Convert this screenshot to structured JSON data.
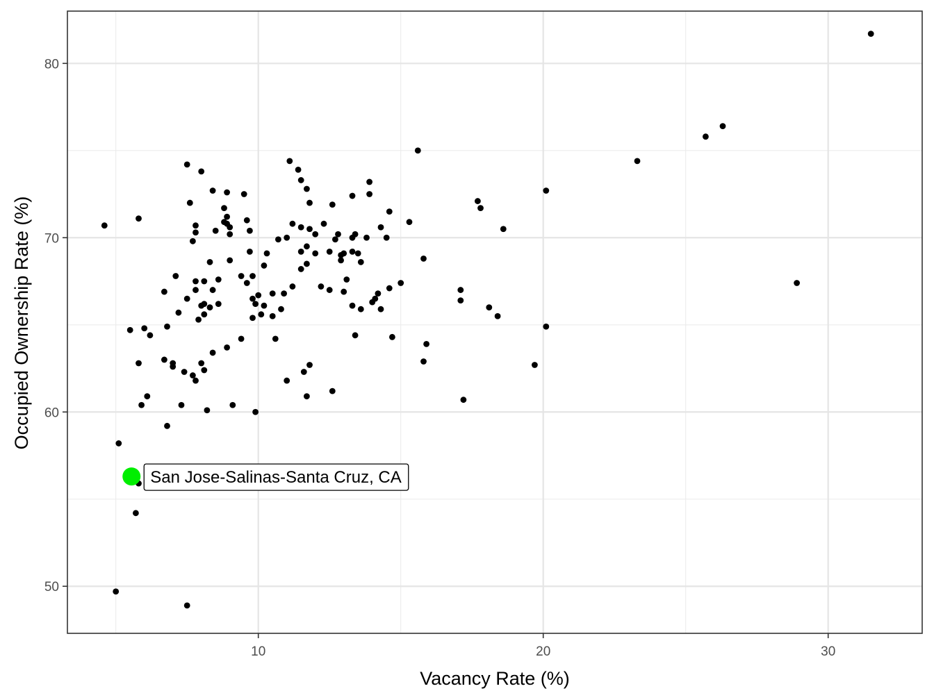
{
  "chart_data": {
    "type": "scatter",
    "title": "",
    "xlabel": "Vacancy Rate (%)",
    "ylabel": "Occupied Ownership Rate (%)",
    "xlim": [
      3.3,
      33.3
    ],
    "ylim": [
      47.3,
      83.0
    ],
    "x_ticks": [
      10,
      20,
      30
    ],
    "y_ticks": [
      50,
      60,
      70,
      80
    ],
    "x_tick_labels": [
      "10",
      "20",
      "30"
    ],
    "y_tick_labels": [
      "50",
      "60",
      "70",
      "80"
    ],
    "grid": true,
    "point_color": "#000000",
    "highlight_color": "#00ee00",
    "highlight": {
      "label": "San Jose-Salinas-Santa Cruz, CA",
      "x": 5.55,
      "y": 56.3
    },
    "points": [
      [
        31.5,
        81.7
      ],
      [
        26.3,
        76.4
      ],
      [
        25.7,
        75.8
      ],
      [
        23.3,
        74.4
      ],
      [
        28.9,
        67.4
      ],
      [
        20.1,
        72.7
      ],
      [
        20.1,
        64.9
      ],
      [
        19.7,
        62.7
      ],
      [
        18.6,
        70.5
      ],
      [
        18.4,
        65.5
      ],
      [
        18.1,
        66.0
      ],
      [
        17.7,
        72.1
      ],
      [
        17.8,
        71.7
      ],
      [
        17.1,
        67.0
      ],
      [
        17.1,
        66.4
      ],
      [
        17.2,
        60.7
      ],
      [
        15.6,
        75.0
      ],
      [
        15.8,
        68.8
      ],
      [
        15.9,
        63.9
      ],
      [
        15.8,
        62.9
      ],
      [
        15.3,
        70.9
      ],
      [
        15.0,
        67.4
      ],
      [
        14.7,
        64.3
      ],
      [
        14.6,
        71.5
      ],
      [
        14.5,
        70.0
      ],
      [
        14.6,
        67.1
      ],
      [
        14.3,
        70.6
      ],
      [
        14.3,
        65.9
      ],
      [
        14.2,
        66.8
      ],
      [
        14.1,
        66.5
      ],
      [
        14.0,
        66.3
      ],
      [
        13.9,
        73.2
      ],
      [
        13.9,
        72.5
      ],
      [
        13.8,
        70.0
      ],
      [
        13.6,
        68.6
      ],
      [
        13.6,
        65.9
      ],
      [
        13.5,
        69.1
      ],
      [
        13.4,
        70.2
      ],
      [
        13.3,
        72.4
      ],
      [
        13.3,
        70.0
      ],
      [
        13.3,
        69.2
      ],
      [
        13.3,
        66.1
      ],
      [
        13.4,
        64.4
      ],
      [
        13.0,
        69.1
      ],
      [
        13.1,
        67.6
      ],
      [
        13.0,
        66.9
      ],
      [
        12.9,
        69.0
      ],
      [
        12.9,
        68.7
      ],
      [
        12.8,
        70.2
      ],
      [
        12.7,
        69.9
      ],
      [
        12.6,
        71.9
      ],
      [
        12.5,
        69.2
      ],
      [
        12.5,
        67.0
      ],
      [
        12.6,
        61.2
      ],
      [
        12.3,
        70.8
      ],
      [
        12.2,
        67.2
      ],
      [
        12.0,
        70.2
      ],
      [
        12.0,
        69.1
      ],
      [
        11.8,
        72.0
      ],
      [
        11.7,
        72.8
      ],
      [
        11.8,
        70.5
      ],
      [
        11.7,
        69.5
      ],
      [
        11.7,
        68.5
      ],
      [
        11.8,
        62.7
      ],
      [
        11.7,
        60.9
      ],
      [
        11.5,
        73.3
      ],
      [
        11.4,
        73.9
      ],
      [
        11.5,
        70.6
      ],
      [
        11.5,
        69.2
      ],
      [
        11.5,
        68.2
      ],
      [
        11.6,
        62.3
      ],
      [
        11.1,
        74.4
      ],
      [
        11.2,
        70.8
      ],
      [
        11.2,
        67.2
      ],
      [
        11.0,
        70.0
      ],
      [
        10.9,
        66.8
      ],
      [
        11.0,
        61.8
      ],
      [
        10.7,
        69.9
      ],
      [
        10.8,
        65.9
      ],
      [
        10.6,
        64.2
      ],
      [
        10.5,
        66.8
      ],
      [
        10.5,
        65.5
      ],
      [
        10.3,
        69.1
      ],
      [
        10.2,
        68.4
      ],
      [
        10.2,
        66.1
      ],
      [
        10.1,
        65.6
      ],
      [
        10.0,
        66.7
      ],
      [
        9.9,
        66.2
      ],
      [
        9.8,
        65.4
      ],
      [
        9.8,
        67.8
      ],
      [
        9.9,
        60.0
      ],
      [
        9.7,
        70.4
      ],
      [
        9.7,
        69.2
      ],
      [
        9.8,
        66.5
      ],
      [
        9.6,
        71.0
      ],
      [
        9.5,
        72.5
      ],
      [
        9.6,
        67.4
      ],
      [
        9.4,
        67.8
      ],
      [
        9.4,
        64.2
      ],
      [
        9.0,
        70.6
      ],
      [
        9.0,
        70.2
      ],
      [
        8.9,
        72.6
      ],
      [
        8.9,
        71.2
      ],
      [
        8.9,
        70.8
      ],
      [
        8.8,
        71.7
      ],
      [
        8.8,
        70.9
      ],
      [
        9.0,
        68.7
      ],
      [
        8.9,
        63.7
      ],
      [
        9.1,
        60.4
      ],
      [
        8.6,
        67.6
      ],
      [
        8.6,
        66.2
      ],
      [
        8.5,
        70.4
      ],
      [
        8.4,
        72.7
      ],
      [
        8.3,
        68.6
      ],
      [
        8.4,
        67.0
      ],
      [
        8.3,
        66.0
      ],
      [
        8.4,
        63.4
      ],
      [
        8.2,
        60.1
      ],
      [
        8.1,
        67.5
      ],
      [
        8.1,
        65.6
      ],
      [
        8.0,
        73.8
      ],
      [
        8.0,
        66.1
      ],
      [
        8.1,
        66.2
      ],
      [
        8.0,
        62.8
      ],
      [
        8.1,
        62.4
      ],
      [
        7.8,
        70.7
      ],
      [
        7.8,
        70.3
      ],
      [
        7.8,
        67.5
      ],
      [
        7.8,
        67.0
      ],
      [
        7.9,
        65.3
      ],
      [
        7.7,
        69.8
      ],
      [
        7.7,
        62.1
      ],
      [
        7.8,
        61.8
      ],
      [
        7.6,
        72.0
      ],
      [
        7.5,
        74.2
      ],
      [
        7.5,
        66.5
      ],
      [
        7.4,
        62.3
      ],
      [
        7.5,
        48.9
      ],
      [
        7.3,
        60.4
      ],
      [
        7.2,
        65.7
      ],
      [
        7.1,
        67.8
      ],
      [
        7.0,
        62.8
      ],
      [
        7.0,
        62.6
      ],
      [
        6.8,
        64.9
      ],
      [
        6.7,
        66.9
      ],
      [
        6.7,
        63.0
      ],
      [
        6.8,
        59.2
      ],
      [
        6.2,
        64.4
      ],
      [
        6.0,
        64.8
      ],
      [
        6.1,
        60.9
      ],
      [
        5.9,
        60.4
      ],
      [
        5.8,
        71.1
      ],
      [
        5.8,
        62.8
      ],
      [
        5.5,
        64.7
      ],
      [
        5.7,
        54.2
      ],
      [
        5.1,
        58.2
      ],
      [
        5.0,
        49.7
      ],
      [
        4.6,
        70.7
      ],
      [
        5.8,
        55.9
      ]
    ]
  }
}
